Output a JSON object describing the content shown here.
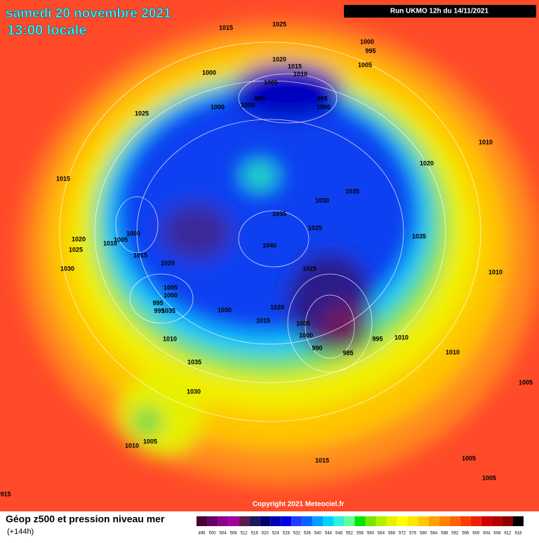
{
  "header": {
    "date": "samedi 20 novembre 2021",
    "time": "13:00 locale",
    "run": "Run UKMO 12h du 14/11/2021"
  },
  "copyright": "Copyright 2021 Meteociel.fr",
  "legend": {
    "title": "Géop z500 et pression niveau mer",
    "subtitle": "(+144h)",
    "scale": [
      496,
      500,
      504,
      508,
      512,
      516,
      520,
      524,
      528,
      532,
      536,
      540,
      544,
      548,
      552,
      556,
      560,
      564,
      568,
      572,
      576,
      580,
      584,
      588,
      592,
      596,
      600,
      604,
      608,
      612,
      616
    ],
    "colors": [
      "#4b0033",
      "#660066",
      "#8a008a",
      "#a000a0",
      "#5c1a4d",
      "#1a1a5a",
      "#00006e",
      "#0000b4",
      "#0000e6",
      "#1e3cff",
      "#0064ff",
      "#00a0ff",
      "#00d2ff",
      "#30f0e0",
      "#64ff96",
      "#00e600",
      "#78e600",
      "#b4f000",
      "#e6f000",
      "#ffff00",
      "#ffe600",
      "#ffc800",
      "#ffa000",
      "#ff8200",
      "#ff6400",
      "#ff3c00",
      "#f01e00",
      "#d20000",
      "#b40000",
      "#8c0000",
      "#000000"
    ]
  },
  "isobar_labels": [
    1015,
    1025,
    1000,
    995,
    1005,
    1020,
    1015,
    1010,
    1000,
    1005,
    995,
    1000,
    995,
    1000,
    1000,
    1025,
    1010,
    1020,
    1015,
    1035,
    1030,
    1035,
    1025,
    1000,
    1035,
    1020,
    1010,
    1005,
    1025,
    1040,
    1015,
    1020,
    1030,
    1025,
    1010,
    1005,
    1000,
    995,
    995,
    1035,
    1030,
    1020,
    1015,
    1005,
    1000,
    990,
    985,
    995,
    1010,
    1010,
    1010,
    1035,
    1005,
    1030,
    1010,
    1005,
    1015,
    1005,
    1005,
    915
  ]
}
